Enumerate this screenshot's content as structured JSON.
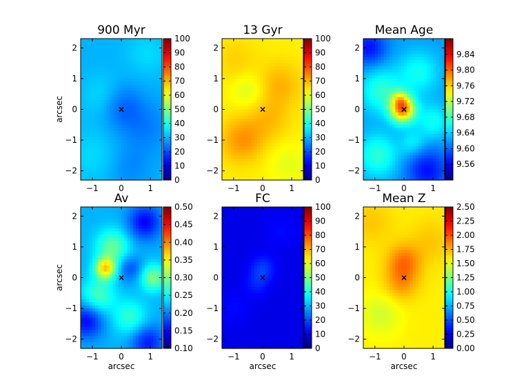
{
  "figure": {
    "background": "#ffffff"
  },
  "colormap": "jet",
  "chart_data": [
    {
      "type": "heatmap",
      "title": "900 Myr",
      "xlabel": "",
      "ylabel": "arcsec",
      "xlim": [
        -1.4,
        1.4
      ],
      "ylim": [
        -2.3,
        2.3
      ],
      "xticks": [
        "−1",
        "0",
        "1"
      ],
      "yticks": [
        "−2",
        "−1",
        "0",
        "1",
        "2"
      ],
      "xtick_values": [
        -1,
        0,
        1
      ],
      "ytick_values": [
        -2,
        -1,
        0,
        1,
        2
      ],
      "colorbar": {
        "min": 0,
        "max": 100,
        "ticks": [
          "0",
          "10",
          "20",
          "30",
          "40",
          "50",
          "60",
          "70",
          "80",
          "90",
          "100"
        ],
        "tick_values": [
          0,
          10,
          20,
          30,
          40,
          50,
          60,
          70,
          80,
          90,
          100
        ]
      },
      "map": {
        "base": 30,
        "blobs": [
          [
            0.0,
            0.1,
            0.5,
            -8
          ],
          [
            -0.6,
            0.4,
            0.5,
            5
          ],
          [
            0.8,
            -0.6,
            0.6,
            -5
          ],
          [
            0.9,
            1.8,
            0.5,
            4
          ],
          [
            -1.0,
            -1.5,
            0.6,
            4
          ],
          [
            0.3,
            -1.9,
            0.5,
            -4
          ]
        ]
      },
      "center_marker": {
        "x": 0,
        "y": 0,
        "symbol": "×"
      }
    },
    {
      "type": "heatmap",
      "title": "13 Gyr",
      "xlabel": "",
      "ylabel": "",
      "xlim": [
        -1.4,
        1.4
      ],
      "ylim": [
        -2.3,
        2.3
      ],
      "xticks": [
        "−1",
        "0",
        "1"
      ],
      "yticks": [
        "−2",
        "−1",
        "0",
        "1",
        "2"
      ],
      "xtick_values": [
        -1,
        0,
        1
      ],
      "ytick_values": [
        -2,
        -1,
        0,
        1,
        2
      ],
      "colorbar": {
        "min": 0,
        "max": 100,
        "ticks": [
          "0",
          "10",
          "20",
          "30",
          "40",
          "50",
          "60",
          "70",
          "80",
          "90",
          "100"
        ],
        "tick_values": [
          0,
          10,
          20,
          30,
          40,
          50,
          60,
          70,
          80,
          90,
          100
        ]
      },
      "map": {
        "base": 64,
        "blobs": [
          [
            -0.7,
            -1.0,
            0.5,
            9
          ],
          [
            0.6,
            0.8,
            0.5,
            6
          ],
          [
            0.2,
            -0.3,
            0.5,
            5
          ],
          [
            -0.5,
            0.6,
            0.4,
            -5
          ],
          [
            0.9,
            -1.8,
            0.5,
            -4
          ],
          [
            -0.9,
            1.6,
            0.5,
            3
          ]
        ]
      },
      "center_marker": {
        "x": 0,
        "y": 0,
        "symbol": "×"
      }
    },
    {
      "type": "heatmap",
      "title": "Mean Age",
      "xlabel": "",
      "ylabel": "",
      "xlim": [
        -1.4,
        1.4
      ],
      "ylim": [
        -2.3,
        2.3
      ],
      "xticks": [
        "−1",
        "0",
        "1"
      ],
      "yticks": [
        "−2",
        "−1",
        "0",
        "1",
        "2"
      ],
      "xtick_values": [
        -1,
        0,
        1
      ],
      "ytick_values": [
        -2,
        -1,
        0,
        1,
        2
      ],
      "colorbar": {
        "min": 9.52,
        "max": 9.88,
        "ticks": [
          "9.56",
          "9.60",
          "9.64",
          "9.68",
          "9.72",
          "9.76",
          "9.80",
          "9.84"
        ],
        "tick_values": [
          9.56,
          9.6,
          9.64,
          9.68,
          9.72,
          9.76,
          9.8,
          9.84
        ]
      },
      "map": {
        "base": 9.62,
        "blobs": [
          [
            -0.05,
            0.0,
            0.3,
            0.17
          ],
          [
            -0.15,
            0.35,
            0.2,
            0.05
          ],
          [
            -0.8,
            0.6,
            0.5,
            0.05
          ],
          [
            0.5,
            1.2,
            0.5,
            0.04
          ],
          [
            -0.9,
            -1.5,
            0.5,
            0.05
          ],
          [
            1.0,
            -0.4,
            0.4,
            0.04
          ],
          [
            0.8,
            -2.0,
            0.5,
            -0.05
          ],
          [
            -1.2,
            2.0,
            0.4,
            -0.05
          ],
          [
            0.3,
            -1.1,
            0.3,
            0.03
          ]
        ]
      },
      "center_marker": {
        "x": 0,
        "y": 0,
        "symbol": "×"
      }
    },
    {
      "type": "heatmap",
      "title": "Av",
      "xlabel": "arcsec",
      "ylabel": "arcsec",
      "xlim": [
        -1.4,
        1.4
      ],
      "ylim": [
        -2.3,
        2.3
      ],
      "xticks": [
        "−1",
        "0",
        "1"
      ],
      "yticks": [
        "−2",
        "−1",
        "0",
        "1",
        "2"
      ],
      "xtick_values": [
        -1,
        0,
        1
      ],
      "ytick_values": [
        -2,
        -1,
        0,
        1,
        2
      ],
      "colorbar": {
        "min": 0.1,
        "max": 0.5,
        "ticks": [
          "0.10",
          "0.15",
          "0.20",
          "0.25",
          "0.30",
          "0.35",
          "0.40",
          "0.45",
          "0.50"
        ],
        "tick_values": [
          0.1,
          0.15,
          0.2,
          0.25,
          0.3,
          0.35,
          0.4,
          0.45,
          0.5
        ]
      },
      "map": {
        "base": 0.22,
        "blobs": [
          [
            -0.55,
            0.3,
            0.25,
            0.14
          ],
          [
            -0.3,
            1.0,
            0.4,
            0.07
          ],
          [
            1.1,
            0.0,
            0.3,
            0.08
          ],
          [
            -0.8,
            -0.6,
            0.4,
            0.06
          ],
          [
            0.3,
            -1.3,
            0.4,
            0.05
          ],
          [
            0.8,
            1.8,
            0.4,
            -0.07
          ],
          [
            -1.2,
            -1.4,
            0.4,
            -0.07
          ],
          [
            0.9,
            -2.1,
            0.4,
            -0.06
          ],
          [
            0.3,
            0.3,
            0.3,
            -0.04
          ]
        ]
      },
      "center_marker": {
        "x": 0,
        "y": 0,
        "symbol": "×"
      }
    },
    {
      "type": "heatmap",
      "title": "FC",
      "xlabel": "arcsec",
      "ylabel": "",
      "xlim": [
        -1.4,
        1.4
      ],
      "ylim": [
        -2.3,
        2.3
      ],
      "xticks": [
        "−1",
        "0",
        "1"
      ],
      "yticks": [
        "−2",
        "−1",
        "0",
        "1",
        "2"
      ],
      "xtick_values": [
        -1,
        0,
        1
      ],
      "ytick_values": [
        -2,
        -1,
        0,
        1,
        2
      ],
      "colorbar": {
        "min": 0,
        "max": 100,
        "ticks": [
          "0",
          "10",
          "20",
          "30",
          "40",
          "50",
          "60",
          "70",
          "80",
          "90",
          "100"
        ],
        "tick_values": [
          0,
          10,
          20,
          30,
          40,
          50,
          60,
          70,
          80,
          90,
          100
        ]
      },
      "map": {
        "base": 10,
        "blobs": [
          [
            0.0,
            0.3,
            0.3,
            8
          ],
          [
            -0.2,
            -0.2,
            0.3,
            5
          ],
          [
            0.6,
            1.5,
            0.4,
            3
          ],
          [
            -1.0,
            -1.0,
            0.4,
            3
          ]
        ]
      },
      "center_marker": {
        "x": 0,
        "y": 0,
        "symbol": "×"
      }
    },
    {
      "type": "heatmap",
      "title": "Mean Z",
      "xlabel": "arcsec",
      "ylabel": "",
      "xlim": [
        -1.4,
        1.4
      ],
      "ylim": [
        -2.3,
        2.3
      ],
      "xticks": [
        "−1",
        "0",
        "1"
      ],
      "yticks": [
        "−2",
        "−1",
        "0",
        "1",
        "2"
      ],
      "xtick_values": [
        -1,
        0,
        1
      ],
      "ytick_values": [
        -2,
        -1,
        0,
        1,
        2
      ],
      "colorbar": {
        "min": 0.0,
        "max": 2.5,
        "ticks": [
          "0.00",
          "0.25",
          "0.50",
          "0.75",
          "1.00",
          "1.25",
          "1.50",
          "1.75",
          "2.00",
          "2.25",
          "2.50"
        ],
        "tick_values": [
          0.0,
          0.25,
          0.5,
          0.75,
          1.0,
          1.25,
          1.5,
          1.75,
          2.0,
          2.25,
          2.5
        ]
      },
      "map": {
        "base": 1.6,
        "blobs": [
          [
            0.0,
            0.5,
            0.4,
            0.3
          ],
          [
            -0.1,
            -0.2,
            0.4,
            0.2
          ],
          [
            -0.8,
            -1.2,
            0.5,
            -0.15
          ],
          [
            0.9,
            1.2,
            0.5,
            0.1
          ],
          [
            -1.1,
            1.8,
            0.5,
            0.1
          ]
        ]
      },
      "center_marker": {
        "x": 0,
        "y": 0,
        "symbol": "×"
      }
    }
  ]
}
